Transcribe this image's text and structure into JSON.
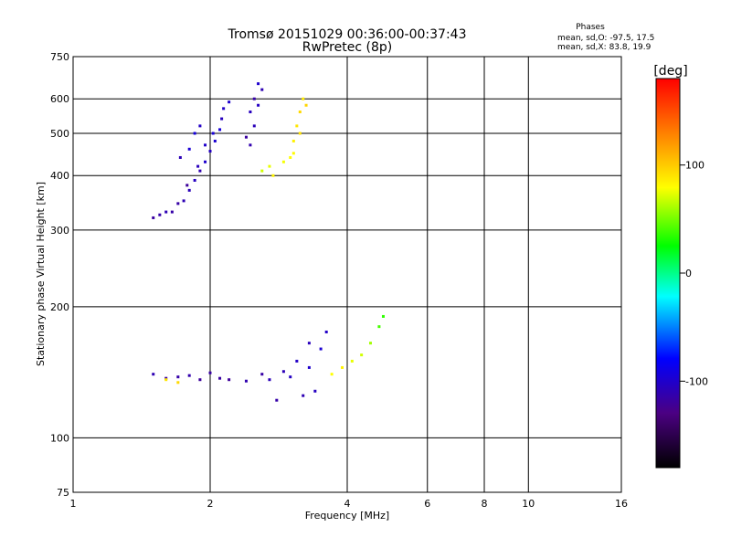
{
  "chart_data": {
    "type": "scatter",
    "title": "Tromsø 20151029 00:36:00-00:37:43",
    "subtitle": "RwPretec (8p)",
    "stats": {
      "heading": "Phases",
      "line_o": "mean, sd,O: -97.5, 17.5",
      "line_x": "mean, sd,X:  83.8, 19.9"
    },
    "xlabel": "Frequency [MHz]",
    "ylabel": "Stationary phase Virtual Height [km]",
    "x_scale": "log",
    "y_scale": "log",
    "xlim": [
      1,
      16
    ],
    "ylim": [
      75,
      750
    ],
    "x_ticks": [
      1,
      2,
      4,
      6,
      8,
      10,
      16
    ],
    "x_tick_labels": [
      "1",
      "2",
      "4",
      "6",
      "8",
      "10",
      "16"
    ],
    "y_ticks": [
      75,
      100,
      200,
      300,
      400,
      500,
      600,
      750
    ],
    "y_tick_labels": [
      "75",
      "100",
      "200",
      "300",
      "400",
      "500",
      "600",
      "750"
    ],
    "grid": true,
    "colorbar": {
      "label": "[deg]",
      "range": [
        -180,
        180
      ],
      "ticks": [
        100,
        0,
        -100
      ],
      "tick_labels": [
        "100",
        "0",
        "-100"
      ],
      "colormap": "rainbow"
    },
    "series": [
      {
        "values": [
          {
            "x": 1.65,
            "y": 330,
            "phase": -115
          },
          {
            "x": 1.75,
            "y": 350,
            "phase": -110
          },
          {
            "x": 1.8,
            "y": 370,
            "phase": -108
          },
          {
            "x": 1.85,
            "y": 390,
            "phase": -105
          },
          {
            "x": 1.9,
            "y": 410,
            "phase": -112
          },
          {
            "x": 1.95,
            "y": 430,
            "phase": -100
          },
          {
            "x": 2.0,
            "y": 455,
            "phase": -104
          },
          {
            "x": 2.05,
            "y": 480,
            "phase": -98
          },
          {
            "x": 2.1,
            "y": 510,
            "phase": -95
          },
          {
            "x": 2.12,
            "y": 540,
            "phase": -106
          },
          {
            "x": 2.14,
            "y": 570,
            "phase": -102
          },
          {
            "x": 2.2,
            "y": 590,
            "phase": -100
          },
          {
            "x": 1.5,
            "y": 320,
            "phase": -118
          },
          {
            "x": 1.55,
            "y": 325,
            "phase": -114
          },
          {
            "x": 1.6,
            "y": 330,
            "phase": -110
          },
          {
            "x": 1.7,
            "y": 345,
            "phase": -116
          },
          {
            "x": 1.78,
            "y": 380,
            "phase": -120
          },
          {
            "x": 1.88,
            "y": 420,
            "phase": -107
          },
          {
            "x": 1.95,
            "y": 470,
            "phase": -101
          },
          {
            "x": 2.03,
            "y": 500,
            "phase": -96
          },
          {
            "x": 1.85,
            "y": 500,
            "phase": -94
          },
          {
            "x": 1.9,
            "y": 520,
            "phase": -103
          },
          {
            "x": 1.72,
            "y": 440,
            "phase": -109
          },
          {
            "x": 1.8,
            "y": 460,
            "phase": -97
          },
          {
            "x": 2.45,
            "y": 470,
            "phase": -112
          },
          {
            "x": 2.5,
            "y": 520,
            "phase": -108
          },
          {
            "x": 2.55,
            "y": 580,
            "phase": -104
          },
          {
            "x": 2.6,
            "y": 630,
            "phase": -110
          },
          {
            "x": 2.55,
            "y": 650,
            "phase": -100
          },
          {
            "x": 2.5,
            "y": 600,
            "phase": -115
          },
          {
            "x": 2.45,
            "y": 560,
            "phase": -106
          },
          {
            "x": 2.4,
            "y": 490,
            "phase": -118
          },
          {
            "x": 1.5,
            "y": 140,
            "phase": -110
          },
          {
            "x": 1.7,
            "y": 138,
            "phase": -115
          },
          {
            "x": 1.9,
            "y": 136,
            "phase": -120
          },
          {
            "x": 2.1,
            "y": 137,
            "phase": -118
          },
          {
            "x": 2.4,
            "y": 135,
            "phase": -112
          },
          {
            "x": 2.7,
            "y": 136,
            "phase": -108
          },
          {
            "x": 3.0,
            "y": 138,
            "phase": -104
          },
          {
            "x": 3.3,
            "y": 145,
            "phase": -100
          },
          {
            "x": 3.5,
            "y": 160,
            "phase": -98
          },
          {
            "x": 3.6,
            "y": 175,
            "phase": -102
          },
          {
            "x": 2.8,
            "y": 122,
            "phase": -115
          },
          {
            "x": 3.2,
            "y": 125,
            "phase": -110
          },
          {
            "x": 3.4,
            "y": 128,
            "phase": -105
          },
          {
            "x": 2.6,
            "y": 140,
            "phase": -116
          },
          {
            "x": 2.9,
            "y": 142,
            "phase": -109
          },
          {
            "x": 3.1,
            "y": 150,
            "phase": -103
          },
          {
            "x": 3.3,
            "y": 165,
            "phase": -107
          },
          {
            "x": 1.6,
            "y": 137,
            "phase": -119
          },
          {
            "x": 1.8,
            "y": 139,
            "phase": -113
          },
          {
            "x": 2.0,
            "y": 141,
            "phase": -117
          },
          {
            "x": 2.2,
            "y": 136,
            "phase": -121
          }
        ]
      },
      {
        "values": [
          {
            "x": 3.0,
            "y": 440,
            "phase": 80
          },
          {
            "x": 3.05,
            "y": 480,
            "phase": 85
          },
          {
            "x": 3.1,
            "y": 520,
            "phase": 90
          },
          {
            "x": 3.15,
            "y": 560,
            "phase": 95
          },
          {
            "x": 3.2,
            "y": 600,
            "phase": 88
          },
          {
            "x": 3.05,
            "y": 450,
            "phase": 82
          },
          {
            "x": 2.9,
            "y": 430,
            "phase": 78
          },
          {
            "x": 2.7,
            "y": 420,
            "phase": 75
          },
          {
            "x": 2.6,
            "y": 410,
            "phase": 70
          },
          {
            "x": 2.75,
            "y": 400,
            "phase": 84
          },
          {
            "x": 3.15,
            "y": 500,
            "phase": 92
          },
          {
            "x": 3.25,
            "y": 580,
            "phase": 96
          },
          {
            "x": 3.7,
            "y": 140,
            "phase": 80
          },
          {
            "x": 3.9,
            "y": 145,
            "phase": 85
          },
          {
            "x": 4.1,
            "y": 150,
            "phase": 75
          },
          {
            "x": 4.3,
            "y": 155,
            "phase": 70
          },
          {
            "x": 4.5,
            "y": 165,
            "phase": 60
          },
          {
            "x": 4.7,
            "y": 180,
            "phase": 40
          },
          {
            "x": 4.8,
            "y": 190,
            "phase": 35
          },
          {
            "x": 1.6,
            "y": 136,
            "phase": 90
          },
          {
            "x": 1.7,
            "y": 134,
            "phase": 95
          }
        ]
      }
    ]
  }
}
